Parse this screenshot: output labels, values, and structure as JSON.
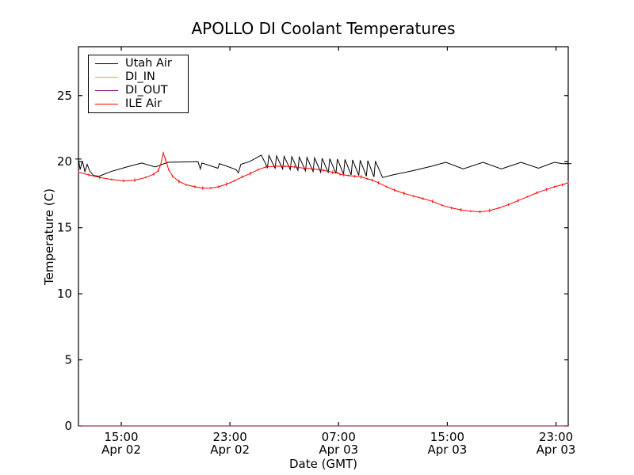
{
  "chart_data": {
    "type": "line",
    "title": "APOLLO DI Coolant Temperatures",
    "xlabel": "Date (GMT)",
    "ylabel": "Temperature (C)",
    "x_unit": "hours since Apr 02 00:00 GMT",
    "xlim": [
      11.85,
      47.9
    ],
    "ylim": [
      0,
      28.7
    ],
    "grid": false,
    "legend_position": "upper left",
    "y_ticks": [
      0,
      5,
      10,
      15,
      20,
      25
    ],
    "x_ticks": [
      {
        "t": 15,
        "time": "15:00",
        "date": "Apr 02"
      },
      {
        "t": 23,
        "time": "23:00",
        "date": "Apr 02"
      },
      {
        "t": 31,
        "time": "07:00",
        "date": "Apr 03"
      },
      {
        "t": 39,
        "time": "15:00",
        "date": "Apr 03"
      },
      {
        "t": 47,
        "time": "23:00",
        "date": "Apr 03"
      }
    ],
    "series": [
      {
        "name": "Utah Air",
        "color": "#000000",
        "marker": "plus-ends",
        "points": [
          [
            11.85,
            20.2
          ],
          [
            11.97,
            19.4
          ],
          [
            12.14,
            20.05
          ],
          [
            12.32,
            19.25
          ],
          [
            12.49,
            19.8
          ],
          [
            12.67,
            19.3
          ],
          [
            12.96,
            18.95
          ],
          [
            13.37,
            18.9
          ],
          [
            14.24,
            19.25
          ],
          [
            15.41,
            19.6
          ],
          [
            16.51,
            19.9
          ],
          [
            17.5,
            19.6
          ],
          [
            18.44,
            19.95
          ],
          [
            20.65,
            20.0
          ],
          [
            20.82,
            19.45
          ],
          [
            20.94,
            19.9
          ],
          [
            22.11,
            19.5
          ],
          [
            22.22,
            19.85
          ],
          [
            23.45,
            19.4
          ],
          [
            23.62,
            19.15
          ],
          [
            23.8,
            19.8
          ],
          [
            24.44,
            20.0
          ],
          [
            25.31,
            20.5
          ],
          [
            25.76,
            19.55
          ],
          [
            25.87,
            20.47
          ],
          [
            26.32,
            19.5
          ],
          [
            26.43,
            20.44
          ],
          [
            26.88,
            19.45
          ],
          [
            26.99,
            20.41
          ],
          [
            27.44,
            19.4
          ],
          [
            27.55,
            20.38
          ],
          [
            28.0,
            19.35
          ],
          [
            28.11,
            20.35
          ],
          [
            28.56,
            19.3
          ],
          [
            28.67,
            20.32
          ],
          [
            29.12,
            19.25
          ],
          [
            29.23,
            20.29
          ],
          [
            29.68,
            19.2
          ],
          [
            29.79,
            20.26
          ],
          [
            30.24,
            19.15
          ],
          [
            30.35,
            20.23
          ],
          [
            30.8,
            19.1
          ],
          [
            30.91,
            20.2
          ],
          [
            31.36,
            19.05
          ],
          [
            31.47,
            20.17
          ],
          [
            31.92,
            19.0
          ],
          [
            32.03,
            20.14
          ],
          [
            32.48,
            18.95
          ],
          [
            32.59,
            20.11
          ],
          [
            33.04,
            18.9
          ],
          [
            33.15,
            20.08
          ],
          [
            33.6,
            18.85
          ],
          [
            33.71,
            20.05
          ],
          [
            34.23,
            18.8
          ],
          [
            35.0,
            19.0
          ],
          [
            36.39,
            19.3
          ],
          [
            37.84,
            19.65
          ],
          [
            38.89,
            19.95
          ],
          [
            40.17,
            19.45
          ],
          [
            41.63,
            19.95
          ],
          [
            42.97,
            19.45
          ],
          [
            44.43,
            19.95
          ],
          [
            45.71,
            19.5
          ],
          [
            46.88,
            19.95
          ],
          [
            47.46,
            19.85
          ],
          [
            47.9,
            19.85
          ]
        ]
      },
      {
        "name": "DI_IN",
        "color": "#ffa500",
        "marker": "none",
        "points": [
          [
            11.85,
            0
          ],
          [
            47.9,
            0
          ]
        ]
      },
      {
        "name": "DI_OUT",
        "color": "#800080",
        "marker": "none",
        "points": [
          [
            11.85,
            0
          ],
          [
            47.9,
            0
          ]
        ]
      },
      {
        "name": "ILE Air",
        "color": "#ff0000",
        "marker": "noise-ticks",
        "points": [
          [
            11.85,
            19.2
          ],
          [
            12.61,
            19.0
          ],
          [
            13.42,
            18.8
          ],
          [
            14.3,
            18.65
          ],
          [
            15.17,
            18.55
          ],
          [
            15.99,
            18.6
          ],
          [
            16.8,
            18.8
          ],
          [
            17.39,
            19.05
          ],
          [
            17.74,
            19.35
          ],
          [
            17.91,
            19.8
          ],
          [
            18.09,
            20.65
          ],
          [
            18.26,
            20.15
          ],
          [
            18.49,
            19.4
          ],
          [
            18.78,
            18.9
          ],
          [
            19.25,
            18.5
          ],
          [
            19.78,
            18.25
          ],
          [
            20.42,
            18.1
          ],
          [
            21.0,
            18.0
          ],
          [
            21.58,
            18.0
          ],
          [
            22.17,
            18.1
          ],
          [
            22.75,
            18.3
          ],
          [
            23.33,
            18.55
          ],
          [
            23.92,
            18.85
          ],
          [
            24.5,
            19.1
          ],
          [
            25.08,
            19.4
          ],
          [
            25.66,
            19.6
          ],
          [
            26.36,
            19.65
          ],
          [
            27.06,
            19.65
          ],
          [
            27.76,
            19.6
          ],
          [
            28.46,
            19.5
          ],
          [
            29.16,
            19.45
          ],
          [
            29.86,
            19.35
          ],
          [
            30.56,
            19.2
          ],
          [
            30.9,
            19.15
          ],
          [
            31.1,
            19.05
          ],
          [
            31.38,
            19.0
          ],
          [
            31.73,
            18.95
          ],
          [
            32.19,
            18.9
          ],
          [
            32.66,
            18.85
          ],
          [
            33.13,
            18.7
          ],
          [
            33.48,
            18.6
          ],
          [
            33.94,
            18.4
          ],
          [
            34.53,
            18.1
          ],
          [
            35.11,
            17.85
          ],
          [
            35.81,
            17.6
          ],
          [
            36.51,
            17.4
          ],
          [
            37.21,
            17.2
          ],
          [
            37.91,
            17.0
          ],
          [
            38.61,
            16.7
          ],
          [
            39.31,
            16.5
          ],
          [
            40.01,
            16.35
          ],
          [
            40.71,
            16.25
          ],
          [
            41.41,
            16.2
          ],
          [
            42.11,
            16.3
          ],
          [
            42.81,
            16.5
          ],
          [
            43.51,
            16.75
          ],
          [
            44.21,
            17.05
          ],
          [
            44.91,
            17.35
          ],
          [
            45.61,
            17.65
          ],
          [
            46.31,
            17.9
          ],
          [
            46.89,
            18.1
          ],
          [
            47.47,
            18.25
          ],
          [
            47.9,
            18.4
          ]
        ]
      }
    ]
  }
}
